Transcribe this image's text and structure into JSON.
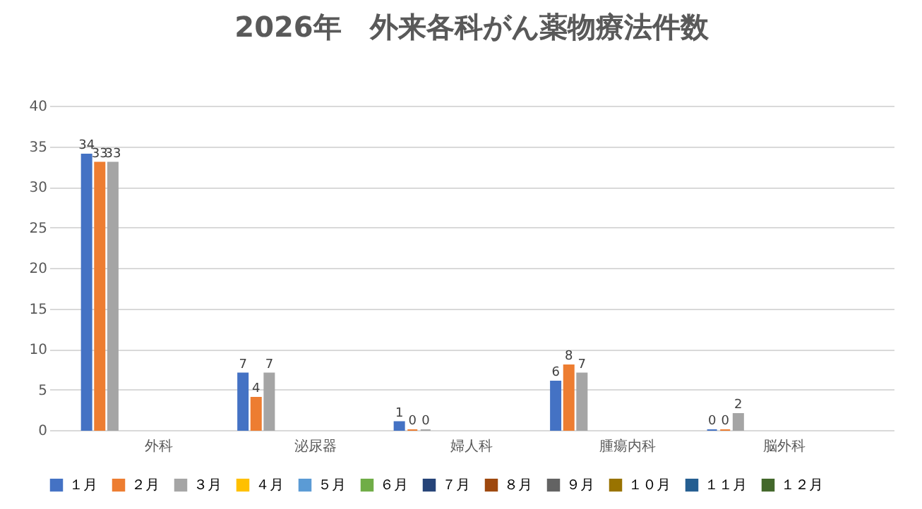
{
  "chart_data": {
    "type": "bar",
    "title": "2026年　外来各科がん薬物療法件数",
    "categories": [
      "外科",
      "泌尿器",
      "婦人科",
      "腫瘍内科",
      "脳外科"
    ],
    "series": [
      {
        "name": "１月",
        "color": "#4472c4",
        "values": [
          34,
          7,
          1,
          6,
          0
        ]
      },
      {
        "name": "２月",
        "color": "#ed7d31",
        "values": [
          33,
          4,
          0,
          8,
          0
        ]
      },
      {
        "name": "３月",
        "color": "#a5a5a5",
        "values": [
          33,
          7,
          0,
          7,
          2
        ]
      },
      {
        "name": "４月",
        "color": "#ffc000",
        "values": [
          null,
          null,
          null,
          null,
          null
        ]
      },
      {
        "name": "５月",
        "color": "#5b9bd5",
        "values": [
          null,
          null,
          null,
          null,
          null
        ]
      },
      {
        "name": "６月",
        "color": "#70ad47",
        "values": [
          null,
          null,
          null,
          null,
          null
        ]
      },
      {
        "name": "７月",
        "color": "#264478",
        "values": [
          null,
          null,
          null,
          null,
          null
        ]
      },
      {
        "name": "８月",
        "color": "#9e480e",
        "values": [
          null,
          null,
          null,
          null,
          null
        ]
      },
      {
        "name": "９月",
        "color": "#636363",
        "values": [
          null,
          null,
          null,
          null,
          null
        ]
      },
      {
        "name": "１０月",
        "color": "#997300",
        "values": [
          null,
          null,
          null,
          null,
          null
        ]
      },
      {
        "name": "１１月",
        "color": "#255e91",
        "values": [
          null,
          null,
          null,
          null,
          null
        ]
      },
      {
        "name": "１２月",
        "color": "#43682b",
        "values": [
          null,
          null,
          null,
          null,
          null
        ]
      }
    ],
    "ylim": [
      0,
      40
    ],
    "yticks": [
      0,
      5,
      10,
      15,
      20,
      25,
      30,
      35,
      40
    ],
    "grid": "y",
    "legend": "bottom",
    "data_labels": true
  }
}
